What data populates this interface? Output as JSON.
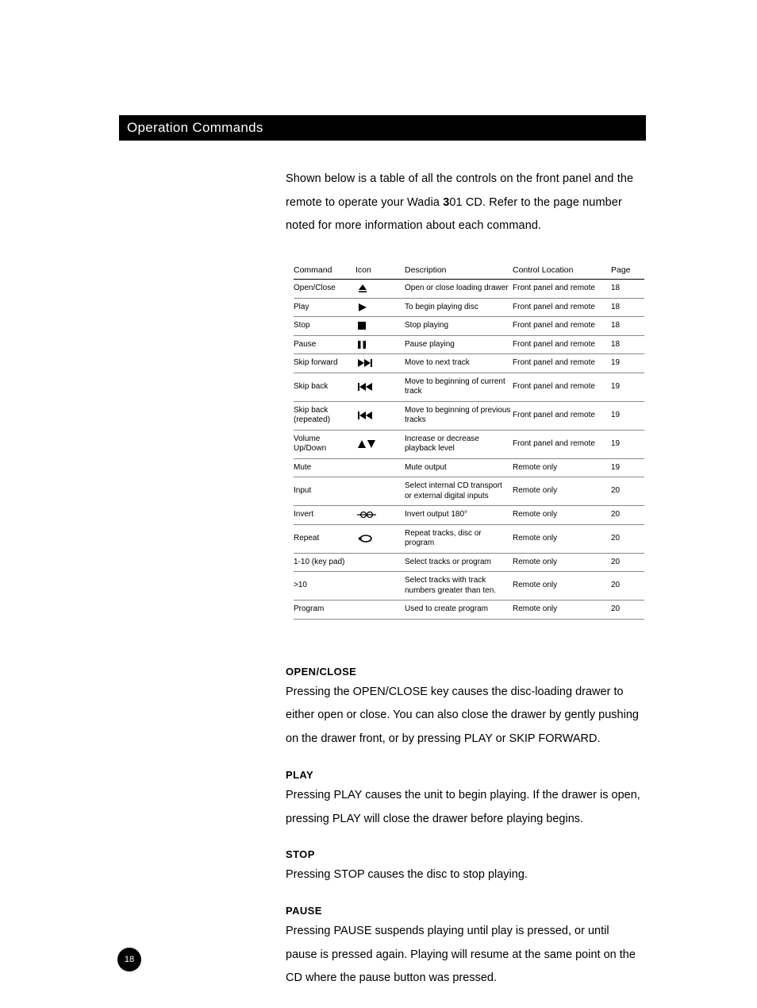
{
  "title": "Operation Commands",
  "intro_pre": "Shown below is a table of all the controls on the front panel and the remote to operate your Wadia ",
  "intro_bold": "3",
  "intro_post": "01 CD. Refer to the page number noted for more information about each command.",
  "page_number": "18",
  "columns": [
    "Command",
    "Icon",
    "Description",
    "Control Location",
    "Page"
  ],
  "rows": [
    {
      "command": "Open/Close",
      "icon": "eject",
      "description": "Open or close loading drawer",
      "location": "Front panel and remote",
      "page": "18"
    },
    {
      "command": "Play",
      "icon": "play",
      "description": "To begin playing disc",
      "location": "Front panel and remote",
      "page": "18"
    },
    {
      "command": "Stop",
      "icon": "stop",
      "description": "Stop playing",
      "location": "Front panel and remote",
      "page": "18"
    },
    {
      "command": "Pause",
      "icon": "pause",
      "description": "Pause playing",
      "location": "Front panel and remote",
      "page": "18"
    },
    {
      "command": "Skip forward",
      "icon": "skipfwd",
      "description": "Move to next track",
      "location": "Front panel and remote",
      "page": "19"
    },
    {
      "command": "Skip back",
      "icon": "skipback",
      "description": "Move to beginning of current track",
      "location": "Front panel and remote",
      "page": "19"
    },
    {
      "command": "Skip back (repeated)",
      "icon": "skipback",
      "description": "Move to beginning of previous tracks",
      "location": "Front panel and remote",
      "page": "19"
    },
    {
      "command": "Volume Up/Down",
      "icon": "updown",
      "description": "Increase or decrease playback level",
      "location": "Front panel and remote",
      "page": "19"
    },
    {
      "command": "Mute",
      "icon": "",
      "description": "Mute output",
      "location": "Remote  only",
      "page": "19"
    },
    {
      "command": "Input",
      "icon": "",
      "description": "Select internal CD transport or external digital inputs",
      "location": "Remote  only",
      "page": "20"
    },
    {
      "command": "Invert",
      "icon": "invert",
      "description": "Invert output 180°",
      "location": "Remote  only",
      "page": "20"
    },
    {
      "command": "Repeat",
      "icon": "repeat",
      "description": "Repeat tracks, disc or program",
      "location": "Remote  only",
      "page": "20"
    },
    {
      "command": "1-10 (key pad)",
      "icon": "",
      "description": "Select tracks or program",
      "location": "Remote  only",
      "page": "20"
    },
    {
      "command": ">10",
      "icon": "",
      "description": "Select tracks with track numbers greater than ten.",
      "location": "Remote  only",
      "page": "20"
    },
    {
      "command": "Program",
      "icon": "",
      "description": "Used to create program",
      "location": "Remote  only",
      "page": "20"
    }
  ],
  "sections": [
    {
      "heading": "OPEN/CLOSE",
      "body": "Pressing the OPEN/CLOSE key causes the disc-loading drawer to either open or close. You can also close the drawer by gently pushing on the drawer front, or by pressing PLAY or SKIP FORWARD."
    },
    {
      "heading": "PLAY",
      "body": "Pressing PLAY causes the unit to begin playing. If the drawer is open, pressing PLAY will close the drawer before playing begins."
    },
    {
      "heading": "STOP",
      "body": "Pressing STOP causes the disc to stop playing."
    },
    {
      "heading": "PAUSE",
      "body": "Pressing PAUSE suspends playing until play is pressed, or until pause is pressed again. Playing will resume at the same point on the CD where the pause button was pressed."
    }
  ],
  "icon_svgs": {
    "eject": "<svg width='14' height='12' viewBox='0 0 14 12'><polygon points='7,1 12,8 2,8' fill='#000'/><rect x='2' y='9.5' width='10' height='1.6' fill='#000'/></svg>",
    "play": "<svg width='14' height='12' viewBox='0 0 14 12'><polygon points='2,1 12,6 2,11' fill='#000'/></svg>",
    "stop": "<svg width='12' height='12' viewBox='0 0 12 12'><rect x='1' y='1' width='10' height='10' fill='#000'/></svg>",
    "pause": "<svg width='12' height='12' viewBox='0 0 12 12'><rect x='1' y='1' width='3.5' height='10' fill='#000'/><rect x='7.5' y='1' width='3.5' height='10' fill='#000'/></svg>",
    "skipfwd": "<svg width='20' height='12' viewBox='0 0 20 12'><polygon points='1,1 9,6 1,11' fill='#000'/><polygon points='9,1 17,6 9,11' fill='#000'/><rect x='17' y='1' width='2' height='10' fill='#000'/></svg>",
    "skipback": "<svg width='20' height='12' viewBox='0 0 20 12'><rect x='1' y='1' width='2' height='10' fill='#000'/><polygon points='11,1 3,6 11,11' fill='#000'/><polygon points='19,1 11,6 19,11' fill='#000'/></svg>",
    "updown": "<svg width='24' height='12' viewBox='0 0 24 12'><polygon points='6,1 11,11 1,11' fill='#000'/><polygon points='18,11 23,1 13,1' fill='#000'/></svg>",
    "invert": "<svg width='24' height='12' viewBox='0 0 24 12'><line x1='0' y1='6' x2='24' y2='6' stroke='#000' stroke-width='1.2'/><circle cx='8' cy='6' r='3.5' fill='none' stroke='#000' stroke-width='1.3'/><circle cx='16' cy='6' r='3.5' fill='none' stroke='#000' stroke-width='1.3'/></svg>",
    "repeat": "<svg width='22' height='12' viewBox='0 0 22 12'><path d='M 4 6 A 7 4 0 1 1 18 6' fill='none' stroke='#000' stroke-width='1.6'/><path d='M 18 6 A 7 4 0 1 1 4 6' fill='none' stroke='#000' stroke-width='1.6'/><polygon points='2,4 7,6 2,8' fill='#000'/></svg>"
  }
}
